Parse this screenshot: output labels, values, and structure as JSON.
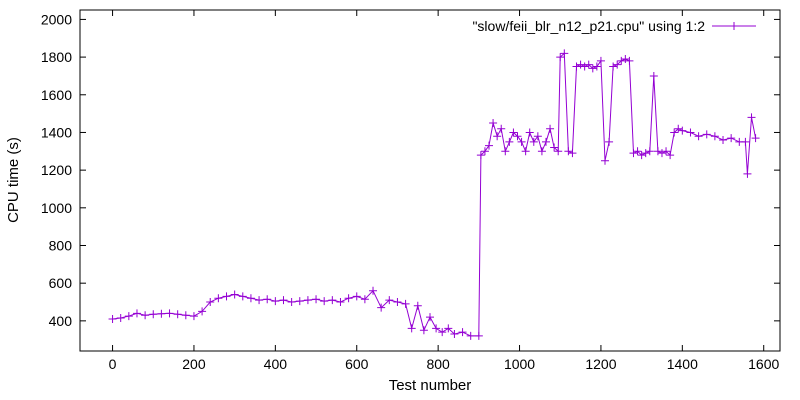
{
  "chart_data": {
    "type": "line",
    "title": "",
    "xlabel": "Test number",
    "ylabel": "CPU time (s)",
    "xlim": [
      -80,
      1640
    ],
    "ylim": [
      240,
      2050
    ],
    "xticks": [
      0,
      200,
      400,
      600,
      800,
      1000,
      1200,
      1400,
      1600
    ],
    "yticks": [
      400,
      600,
      800,
      1000,
      1200,
      1400,
      1600,
      1800,
      2000
    ],
    "grid": false,
    "legend_position": "top-right",
    "series": [
      {
        "name": "\"slow/feii_blr_n12_p21.cpu\" using 1:2",
        "color": "#9400d3",
        "marker": "plus",
        "x": [
          0,
          20,
          40,
          60,
          80,
          100,
          120,
          140,
          160,
          180,
          200,
          220,
          240,
          260,
          280,
          300,
          320,
          340,
          360,
          380,
          400,
          420,
          440,
          460,
          480,
          500,
          520,
          540,
          560,
          580,
          600,
          620,
          640,
          660,
          680,
          700,
          720,
          735,
          750,
          765,
          780,
          795,
          810,
          825,
          840,
          860,
          880,
          900,
          905,
          915,
          925,
          935,
          945,
          955,
          965,
          975,
          985,
          995,
          1005,
          1015,
          1025,
          1035,
          1045,
          1055,
          1065,
          1075,
          1085,
          1095,
          1100,
          1110,
          1120,
          1130,
          1140,
          1150,
          1160,
          1170,
          1180,
          1190,
          1200,
          1210,
          1220,
          1230,
          1240,
          1250,
          1260,
          1270,
          1280,
          1290,
          1300,
          1310,
          1320,
          1330,
          1340,
          1350,
          1360,
          1370,
          1380,
          1390,
          1400,
          1420,
          1440,
          1460,
          1480,
          1500,
          1520,
          1540,
          1555,
          1560,
          1570,
          1580
        ],
        "y": [
          410,
          415,
          425,
          440,
          430,
          435,
          438,
          440,
          435,
          430,
          425,
          450,
          500,
          520,
          530,
          540,
          530,
          520,
          510,
          515,
          505,
          510,
          500,
          505,
          510,
          515,
          505,
          510,
          500,
          520,
          530,
          515,
          560,
          470,
          510,
          500,
          490,
          360,
          480,
          350,
          420,
          360,
          340,
          360,
          330,
          340,
          320,
          320,
          1280,
          1300,
          1330,
          1450,
          1380,
          1420,
          1300,
          1350,
          1400,
          1380,
          1350,
          1300,
          1400,
          1350,
          1380,
          1300,
          1350,
          1420,
          1320,
          1300,
          1800,
          1820,
          1300,
          1290,
          1750,
          1760,
          1750,
          1760,
          1740,
          1750,
          1780,
          1250,
          1350,
          1750,
          1760,
          1780,
          1790,
          1780,
          1290,
          1300,
          1280,
          1290,
          1300,
          1700,
          1300,
          1290,
          1300,
          1280,
          1400,
          1420,
          1410,
          1400,
          1380,
          1390,
          1380,
          1360,
          1370,
          1350,
          1350,
          1180,
          1480,
          1370
        ]
      }
    ]
  }
}
